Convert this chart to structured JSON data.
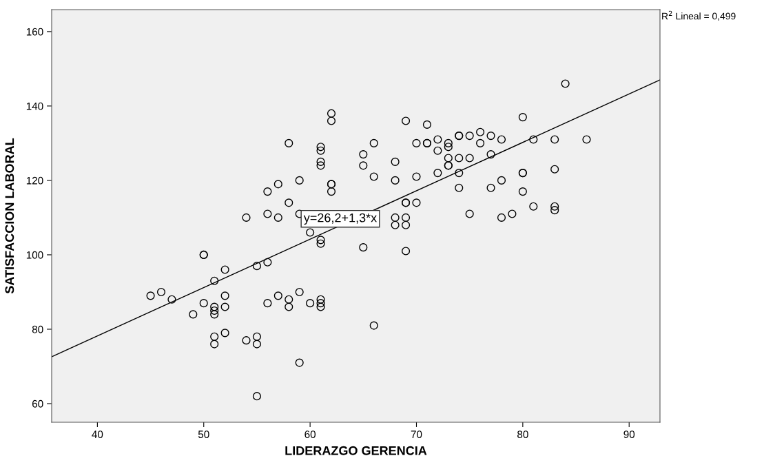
{
  "chart_data": {
    "type": "scatter",
    "xlabel": "LIDERAZGO GERENCIA",
    "ylabel": "SATISFACCION LABORAL",
    "xlim": [
      35.7,
      92.9
    ],
    "ylim": [
      55,
      165.9
    ],
    "xticks": [
      40,
      50,
      60,
      70,
      80,
      90
    ],
    "yticks": [
      60,
      80,
      100,
      120,
      140,
      160
    ],
    "grid": false,
    "legend": false,
    "marker": "circle",
    "series": [
      {
        "color": "#000000",
        "x": [
          45,
          46,
          47,
          49,
          50,
          50,
          50,
          51,
          51,
          51,
          51,
          51,
          51,
          52,
          52,
          52,
          52,
          54,
          54,
          55,
          55,
          55,
          55,
          56,
          56,
          56,
          56,
          57,
          57,
          57,
          58,
          58,
          58,
          58,
          59,
          59,
          59,
          59,
          60,
          60,
          61,
          61,
          61,
          61,
          61,
          61,
          61,
          61,
          61,
          62,
          62,
          62,
          62,
          62,
          65,
          65,
          65,
          66,
          66,
          66,
          68,
          68,
          68,
          68,
          69,
          69,
          69,
          69,
          69,
          69,
          70,
          70,
          70,
          71,
          71,
          71,
          72,
          72,
          72,
          73,
          73,
          73,
          73,
          73,
          74,
          74,
          74,
          74,
          74,
          75,
          75,
          75,
          76,
          76,
          77,
          77,
          77,
          78,
          78,
          78,
          79,
          80,
          80,
          80,
          80,
          81,
          81,
          83,
          83,
          83,
          83,
          84,
          86
        ],
        "values": [
          89,
          90,
          88,
          84,
          100,
          100,
          87,
          93,
          86,
          85,
          84,
          78,
          76,
          96,
          89,
          86,
          79,
          110,
          77,
          97,
          78,
          76,
          62,
          117,
          111,
          98,
          87,
          119,
          110,
          89,
          130,
          114,
          88,
          86,
          120,
          111,
          90,
          71,
          106,
          87,
          129,
          128,
          125,
          124,
          104,
          103,
          88,
          87,
          86,
          138,
          136,
          119,
          119,
          117,
          127,
          124,
          102,
          130,
          121,
          81,
          125,
          120,
          110,
          108,
          136,
          114,
          114,
          110,
          108,
          101,
          130,
          121,
          114,
          135,
          130,
          130,
          131,
          128,
          122,
          130,
          129,
          126,
          124,
          124,
          132,
          132,
          126,
          122,
          118,
          132,
          126,
          111,
          133,
          130,
          132,
          127,
          118,
          131,
          120,
          110,
          111,
          137,
          122,
          122,
          117,
          131,
          113,
          131,
          123,
          113,
          112,
          146,
          131
        ]
      },
      {
        "type": "line",
        "color": "#000000",
        "marker": "none",
        "line_style": "solid",
        "x": [
          35.7,
          92.9
        ],
        "values": [
          72.6,
          147.0
        ]
      }
    ],
    "annotations": [
      "y=26,2+1,3*x",
      "R$^{2}$ Lineal = 0,499"
    ]
  }
}
